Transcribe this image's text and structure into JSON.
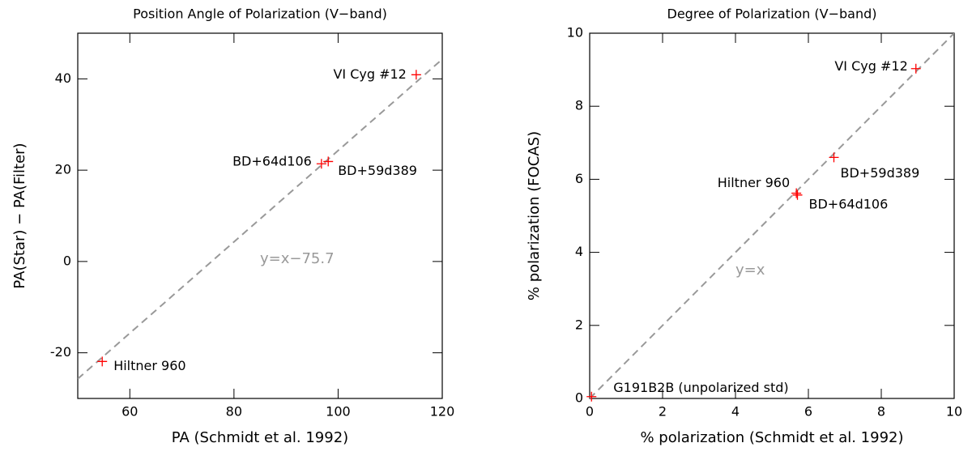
{
  "chart_data": [
    {
      "type": "scatter",
      "title": "Position Angle of Polarization (V−band)",
      "xlabel": "PA (Schmidt et al. 1992)",
      "ylabel": "PA(Star) − PA(Filter)",
      "xlim": [
        50,
        120
      ],
      "ylim": [
        -30,
        50
      ],
      "xticks": [
        60,
        80,
        100,
        120
      ],
      "yticks": [
        -20,
        0,
        20,
        40
      ],
      "series": [
        {
          "color": "#ff0000",
          "x": [
            54.7,
            96.8,
            98.1,
            115
          ],
          "values": [
            -21.9,
            21.4,
            21.9,
            40.9
          ],
          "point_labels": [
            "Hiltner 960",
            "BD+64d106",
            "BD+59d389",
            "VI Cyg #12"
          ]
        }
      ],
      "reference_line": {
        "slope": 1,
        "intercept": -75.7,
        "color": "#999999",
        "label": "y=x−75.7",
        "label_x": 85,
        "label_y": 0.5
      }
    },
    {
      "type": "scatter",
      "title": "Degree of Polarization (V−band)",
      "xlabel": "% polarization (Schmidt et al. 1992)",
      "ylabel": "% polarization (FOCAS)",
      "xlim": [
        0,
        10
      ],
      "ylim": [
        0,
        10
      ],
      "xticks": [
        0,
        2,
        4,
        6,
        8,
        10
      ],
      "yticks": [
        0,
        2,
        4,
        6,
        8,
        10
      ],
      "series": [
        {
          "color": "#ff0000",
          "x": [
            0.05,
            5.67,
            5.7,
            6.7,
            8.95
          ],
          "values": [
            0.05,
            5.62,
            5.57,
            6.6,
            9.03
          ],
          "point_labels": [
            "G191B2B (unpolarized std)",
            "Hiltner 960",
            "BD+64d106",
            "BD+59d389",
            "VI Cyg #12"
          ]
        }
      ],
      "reference_line": {
        "slope": 1,
        "intercept": 0,
        "color": "#999999",
        "label": "y=x",
        "label_x": 4,
        "label_y": 3.5
      }
    }
  ]
}
